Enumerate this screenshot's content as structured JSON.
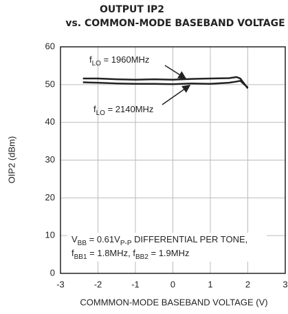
{
  "chart_data": {
    "type": "line",
    "title": "OUTPUT IP2",
    "subtitle": "vs. COMMON-MODE BASEBAND VOLTAGE",
    "xlabel": "COMMMON-MODE BASEBAND VOLTAGE (V)",
    "ylabel": "OIP2 (dBm)",
    "x": [
      -2.4,
      -2,
      -1.5,
      -1,
      -0.5,
      0,
      0.5,
      1,
      1.5,
      1.7,
      1.8,
      2
    ],
    "series": [
      {
        "name": "fLO = 1960MHz",
        "color": "#222222",
        "values": [
          51.6,
          51.6,
          51.4,
          51.3,
          51.4,
          51.3,
          51.5,
          51.6,
          51.7,
          52,
          51.6,
          49
        ]
      },
      {
        "name": "fLO = 2140MHz",
        "color": "#222222",
        "values": [
          50.6,
          50.5,
          50.3,
          50.2,
          50.2,
          50.1,
          50.3,
          50.2,
          50.5,
          50.8,
          51,
          49.2
        ]
      }
    ],
    "annotations": [
      {
        "parts": [
          "f",
          "LO",
          " = 1960MHz"
        ]
      },
      {
        "parts": [
          "f",
          "LO",
          " = 2140MHz"
        ]
      },
      {
        "parts": [
          "V",
          "BB",
          " = 0.61V",
          "P-P",
          " DIFFERENTIAL PER TONE,"
        ]
      },
      {
        "parts": [
          "f",
          "BB1",
          " = 1.8MHz, f",
          "BB2",
          " = 1.9MHz"
        ]
      }
    ],
    "xlim": [
      -3,
      3
    ],
    "xticks": [
      -3,
      -2,
      -1,
      0,
      1,
      2,
      3
    ],
    "ylim": [
      0,
      60
    ],
    "yticks": [
      0,
      10,
      20,
      30,
      40,
      50,
      60
    ],
    "grid": true
  }
}
